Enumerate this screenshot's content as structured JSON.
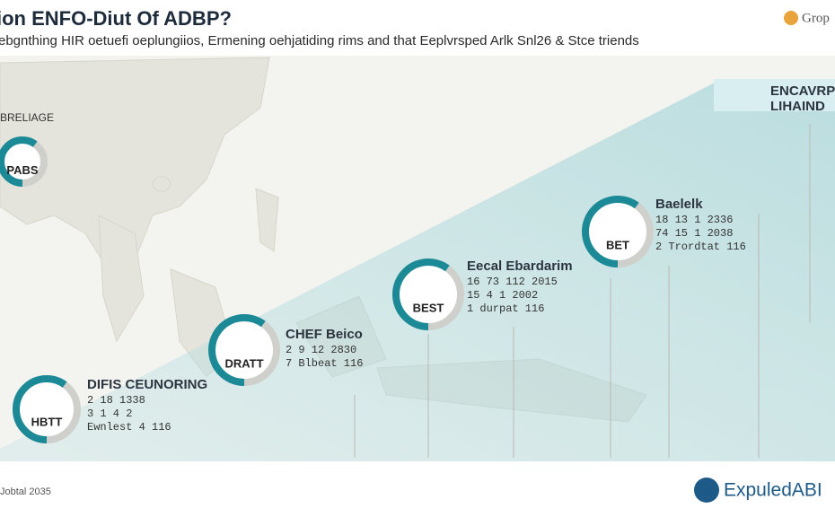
{
  "header": {
    "title": "ion ENFO-Diut Of ADBP?",
    "subtitle": "ebgnthing HIR oetuefi oeplungiios, Ermening oehjatiding rims and that Eeplvrsped Arlk Snl26 & Stce triends",
    "logo": "Grop"
  },
  "nodes": [
    {
      "heading": "BRELIAGE",
      "ring": "PABS"
    },
    {
      "ring": "HBTT",
      "title": "DIFIS CEUNORING",
      "lines": [
        "2 18 1338",
        "3 1 4 2",
        "Ewnlest 4 116"
      ]
    },
    {
      "ring": "DRATT",
      "title": "CHEF Beico",
      "lines": [
        "2 9 12 2830",
        "7 Blbeat 116"
      ]
    },
    {
      "ring": "BEST",
      "title": "Eecal Ebardarim",
      "lines": [
        "16 73 112 2015",
        "15 4 1 2002",
        "1 durpat 116"
      ]
    },
    {
      "ring": "BET",
      "title": "Baelelk",
      "lines": [
        "18 13 1 2336",
        "74 15 1 2038",
        "2 Trordtat 116"
      ]
    },
    {
      "title": "ENCAVRP",
      "lines": [
        "LIHAIND"
      ]
    }
  ],
  "footer": {
    "note": "Jobtal 2035",
    "brand": "ExpuledABI"
  }
}
